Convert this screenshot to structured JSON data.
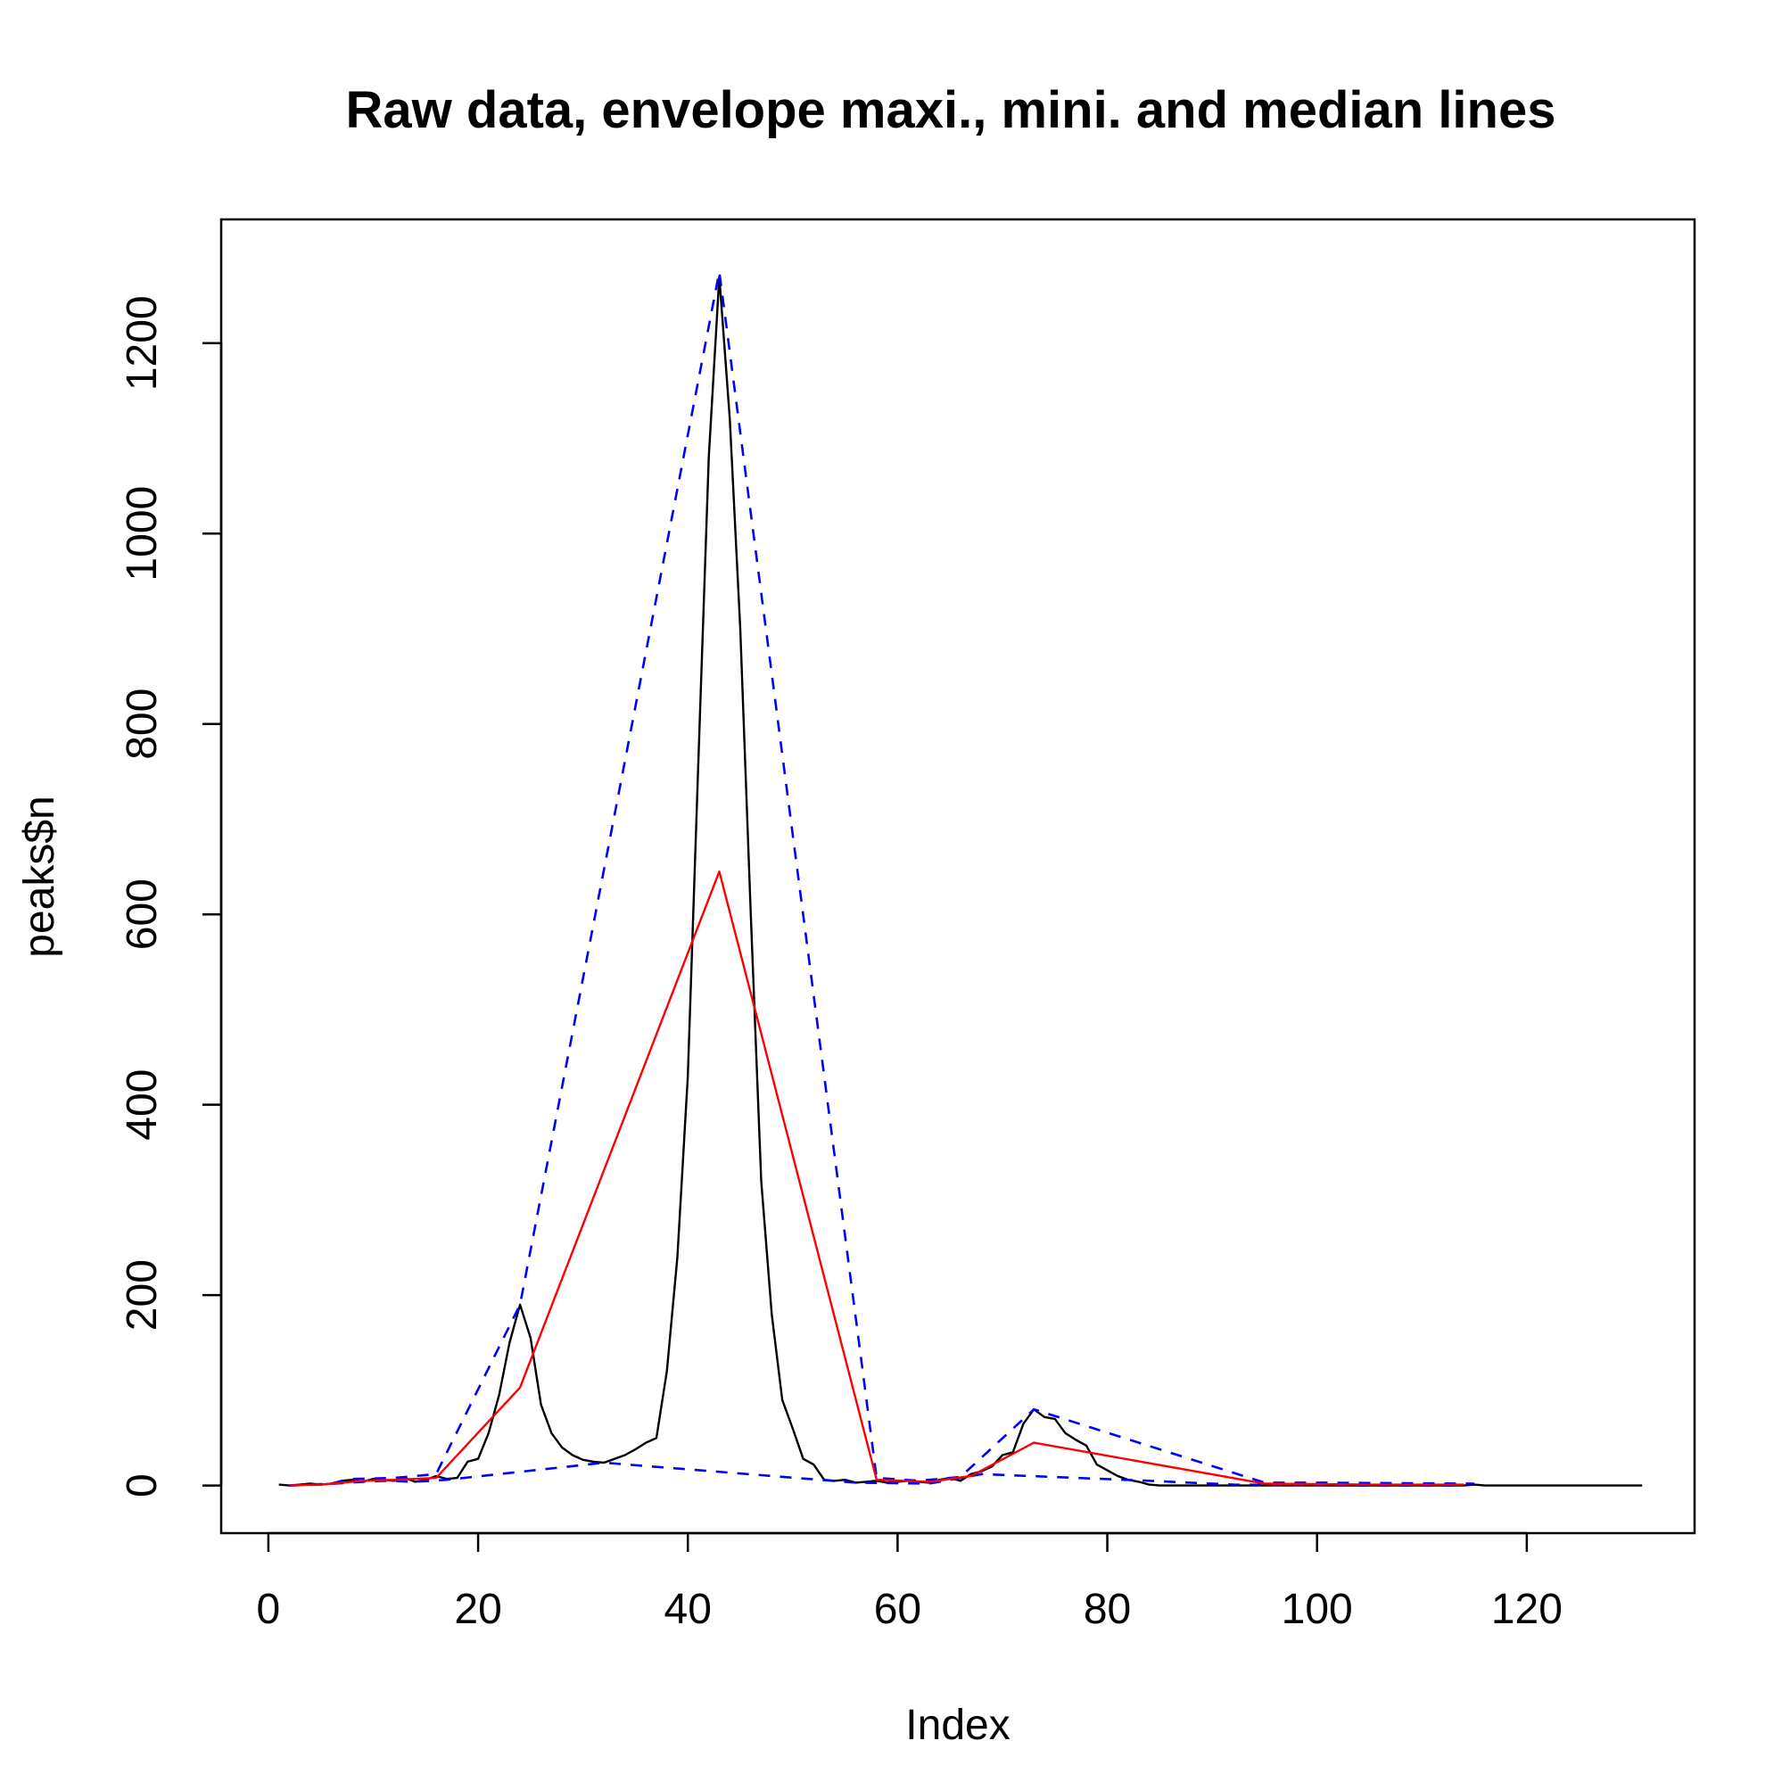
{
  "chart_data": {
    "type": "line",
    "title": "Raw data, envelope maxi., mini. and median lines",
    "xlabel": "Index",
    "ylabel": "peaks$n",
    "xlim": [
      -4.5,
      136
    ],
    "ylim": [
      -50,
      1330
    ],
    "xticks": [
      0,
      20,
      40,
      60,
      80,
      100,
      120
    ],
    "yticks": [
      0,
      200,
      400,
      600,
      800,
      1000,
      1200
    ],
    "grid": false,
    "legend": "none",
    "series": [
      {
        "style": "solid",
        "color": "#000000",
        "x": [
          1,
          2,
          3,
          4,
          5,
          6,
          7,
          8,
          9,
          10,
          11,
          12,
          13,
          14,
          15,
          16,
          17,
          18,
          19,
          20,
          21,
          22,
          23,
          24,
          25,
          26,
          27,
          28,
          29,
          30,
          31,
          32,
          33,
          34,
          35,
          36,
          37,
          38,
          39,
          40,
          41,
          42,
          43,
          44,
          45,
          46,
          47,
          48,
          49,
          50,
          51,
          52,
          53,
          54,
          55,
          56,
          57,
          58,
          59,
          60,
          61,
          62,
          63,
          64,
          65,
          66,
          67,
          68,
          69,
          70,
          71,
          72,
          73,
          74,
          75,
          76,
          77,
          78,
          79,
          80,
          81,
          82,
          83,
          84,
          85,
          86,
          87,
          88,
          89,
          90,
          91,
          92,
          93,
          94,
          95,
          96,
          97,
          98,
          99,
          100,
          101,
          102,
          103,
          104,
          105,
          106,
          107,
          108,
          109,
          110,
          111,
          112,
          113,
          114,
          115,
          116,
          117,
          118,
          119,
          120,
          121,
          122,
          123,
          124,
          125,
          126,
          127,
          128,
          129,
          130,
          131
        ],
        "y": [
          1,
          0,
          1,
          2,
          1,
          2,
          5,
          6,
          4,
          7,
          6,
          5,
          8,
          4,
          6,
          10,
          7,
          8,
          25,
          28,
          55,
          95,
          150,
          190,
          155,
          85,
          55,
          40,
          32,
          27,
          25,
          24,
          28,
          32,
          38,
          45,
          50,
          120,
          240,
          430,
          760,
          1080,
          1270,
          1120,
          900,
          600,
          320,
          180,
          90,
          60,
          28,
          22,
          6,
          5,
          6,
          3,
          4,
          5,
          3,
          4,
          5,
          4,
          3,
          6,
          8,
          5,
          12,
          15,
          20,
          32,
          35,
          65,
          80,
          72,
          70,
          55,
          48,
          42,
          22,
          16,
          10,
          6,
          4,
          1,
          0,
          0,
          0,
          0,
          0,
          0,
          0,
          0,
          0,
          0,
          0,
          0,
          0,
          0,
          0,
          0,
          0,
          0,
          0,
          0,
          0,
          0,
          0,
          0,
          0,
          0,
          0,
          0,
          0,
          0,
          1,
          0,
          0,
          0,
          0,
          0,
          0,
          0,
          0,
          0,
          0,
          0,
          0,
          0,
          0,
          0,
          0
        ]
      },
      {
        "style": "dashed",
        "color": "#0000FF",
        "x": [
          2,
          6,
          8,
          12,
          16,
          24,
          43,
          58,
          62,
          66,
          73,
          95,
          100,
          115
        ],
        "y": [
          0,
          2,
          7,
          8,
          12,
          190,
          1275,
          8,
          5,
          9,
          80,
          3,
          3,
          2
        ]
      },
      {
        "style": "dashed",
        "color": "#0000FF",
        "x": [
          2,
          5,
          9,
          11,
          14,
          17,
          32,
          56,
          63,
          68,
          84,
          92,
          105,
          114
        ],
        "y": [
          0,
          1,
          4,
          5,
          4,
          6,
          24,
          3,
          2,
          12,
          5,
          1,
          0,
          0
        ]
      },
      {
        "style": "solid",
        "color": "#FF0000",
        "x": [
          2,
          5,
          9,
          12,
          16,
          24,
          43,
          58,
          63,
          67,
          73,
          95,
          105,
          114
        ],
        "y": [
          0,
          1,
          5,
          6,
          8,
          103,
          645,
          6,
          4,
          10,
          45,
          2,
          1,
          1
        ]
      }
    ]
  }
}
